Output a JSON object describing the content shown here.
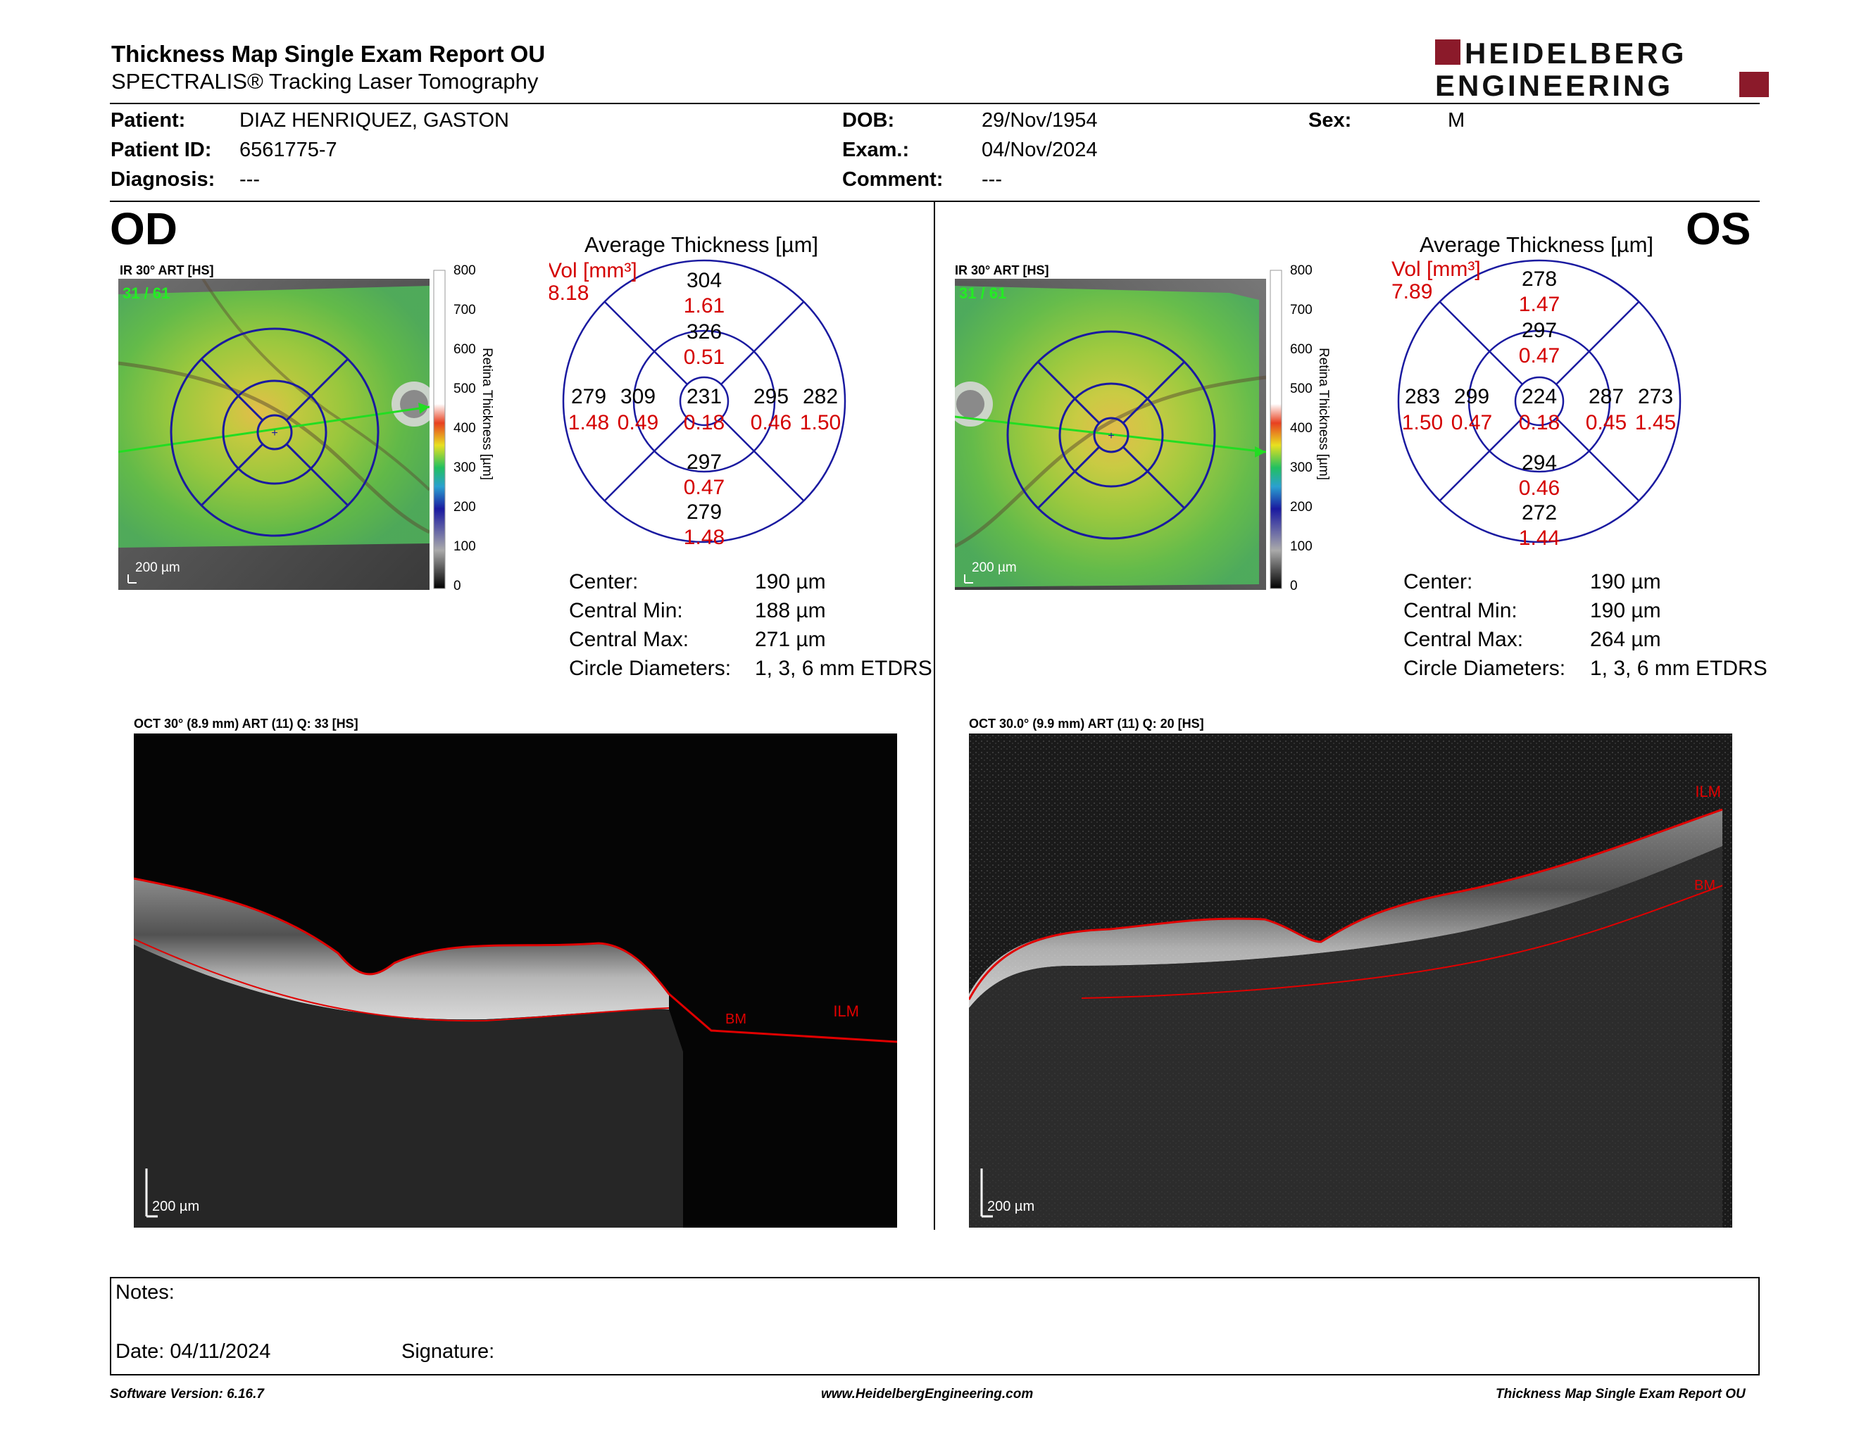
{
  "report": {
    "title": "Thickness Map Single Exam Report OU",
    "subtitle": "SPECTRALIS® Tracking Laser Tomography",
    "brand_line1": "HEIDELBERG",
    "brand_line2": "ENGINEERING",
    "brand_color": "#8b1a2a"
  },
  "patient": {
    "patient_label": "Patient:",
    "patient_value": "DIAZ HENRIQUEZ, GASTON",
    "id_label": "Patient ID:",
    "id_value": "6561775-7",
    "diagnosis_label": "Diagnosis:",
    "diagnosis_value": "---",
    "dob_label": "DOB:",
    "dob_value": "29/Nov/1954",
    "exam_label": "Exam.:",
    "exam_value": "04/Nov/2024",
    "comment_label": "Comment:",
    "comment_value": "---",
    "sex_label": "Sex:",
    "sex_value": "M"
  },
  "colorbar": {
    "ticks": [
      "800",
      "700",
      "600",
      "500",
      "400",
      "300",
      "200",
      "100",
      "0"
    ],
    "label": "Retina Thickness [µm]"
  },
  "od": {
    "eye": "OD",
    "ir_caption": "IR 30° ART [HS]",
    "frame": "31 / 61",
    "scale": "200 µm",
    "avg_title": "Average Thickness [µm]",
    "vol_label": "Vol [mm³]",
    "vol_total": "8.18",
    "sectors": {
      "outer_sup": {
        "t": "304",
        "v": "1.61"
      },
      "inner_sup": {
        "t": "326",
        "v": "0.51"
      },
      "outer_left": {
        "t": "279",
        "v": "1.48"
      },
      "inner_left": {
        "t": "309",
        "v": "0.49"
      },
      "center": {
        "t": "231",
        "v": "0.18"
      },
      "inner_right": {
        "t": "295",
        "v": "0.46"
      },
      "outer_right": {
        "t": "282",
        "v": "1.50"
      },
      "inner_inf": {
        "t": "297",
        "v": "0.47"
      },
      "outer_inf": {
        "t": "279",
        "v": "1.48"
      }
    },
    "stats": [
      {
        "label": "Center:",
        "value": "190 µm"
      },
      {
        "label": "Central Min:",
        "value": "188 µm"
      },
      {
        "label": "Central Max:",
        "value": "271 µm"
      },
      {
        "label": "Circle Diameters:",
        "value": "1, 3, 6 mm ETDRS"
      }
    ],
    "oct_caption": "OCT 30° (8.9 mm) ART (11) Q: 33 [HS]",
    "oct_scale": "200 µm",
    "ilm": "ILM",
    "bm": "BM"
  },
  "os": {
    "eye": "OS",
    "ir_caption": "IR 30° ART [HS]",
    "frame": "31 / 61",
    "scale": "200 µm",
    "avg_title": "Average Thickness [µm]",
    "vol_label": "Vol [mm³]",
    "vol_total": "7.89",
    "sectors": {
      "outer_sup": {
        "t": "278",
        "v": "1.47"
      },
      "inner_sup": {
        "t": "297",
        "v": "0.47"
      },
      "outer_left": {
        "t": "283",
        "v": "1.50"
      },
      "inner_left": {
        "t": "299",
        "v": "0.47"
      },
      "center": {
        "t": "224",
        "v": "0.18"
      },
      "inner_right": {
        "t": "287",
        "v": "0.45"
      },
      "outer_right": {
        "t": "273",
        "v": "1.45"
      },
      "inner_inf": {
        "t": "294",
        "v": "0.46"
      },
      "outer_inf": {
        "t": "272",
        "v": "1.44"
      }
    },
    "stats": [
      {
        "label": "Center:",
        "value": "190 µm"
      },
      {
        "label": "Central Min:",
        "value": "190 µm"
      },
      {
        "label": "Central Max:",
        "value": "264 µm"
      },
      {
        "label": "Circle Diameters:",
        "value": "1, 3, 6 mm ETDRS"
      }
    ],
    "oct_caption": "OCT 30.0° (9.9 mm) ART (11) Q: 20 [HS]",
    "oct_scale": "200 µm",
    "ilm": "ILM",
    "bm": "BM"
  },
  "notes": {
    "notes_label": "Notes:",
    "date_label": "Date: 04/11/2024",
    "signature_label": "Signature:"
  },
  "footer": {
    "left": "Software Version: 6.16.7",
    "center": "www.HeidelbergEngineering.com",
    "right": "Thickness Map Single Exam Report OU"
  }
}
